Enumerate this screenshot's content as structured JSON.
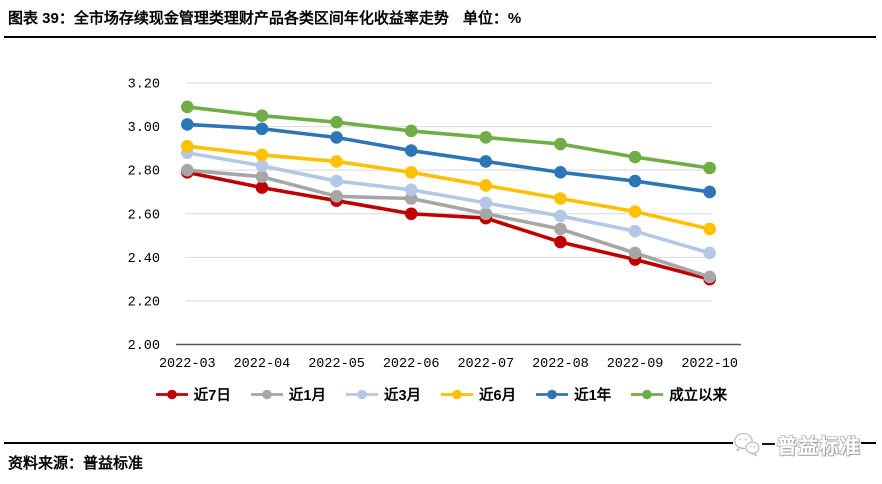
{
  "header": {
    "title": "图表 39：全市场存续现金管理类理财产品各类区间年化收益率走势",
    "unit": "单位：%"
  },
  "source": {
    "label": "资料来源：普益标准"
  },
  "logo": {
    "text": "普益标准",
    "icon": "wechat-bubbles-icon"
  },
  "chart_data": {
    "type": "line",
    "title": "全市场存续现金管理类理财产品各类区间年化收益率走势",
    "unit": "%",
    "xlabel": "",
    "ylabel": "",
    "categories": [
      "2022-03",
      "2022-04",
      "2022-05",
      "2022-06",
      "2022-07",
      "2022-08",
      "2022-09",
      "2022-10"
    ],
    "series": [
      {
        "id": "7d",
        "name": "近7日",
        "color": "#C00000",
        "values": [
          2.79,
          2.72,
          2.66,
          2.6,
          2.58,
          2.47,
          2.39,
          2.3
        ]
      },
      {
        "id": "1m",
        "name": "近1月",
        "color": "#A6A6A6",
        "values": [
          2.8,
          2.77,
          2.68,
          2.67,
          2.6,
          2.53,
          2.42,
          2.31
        ]
      },
      {
        "id": "3m",
        "name": "近3月",
        "color": "#B4C7E7",
        "values": [
          2.88,
          2.82,
          2.75,
          2.71,
          2.65,
          2.59,
          2.52,
          2.42
        ]
      },
      {
        "id": "6m",
        "name": "近6月",
        "color": "#FFC000",
        "values": [
          2.91,
          2.87,
          2.84,
          2.79,
          2.73,
          2.67,
          2.61,
          2.53
        ]
      },
      {
        "id": "1y",
        "name": "近1年",
        "color": "#2E75B6",
        "values": [
          3.01,
          2.99,
          2.95,
          2.89,
          2.84,
          2.79,
          2.75,
          2.7
        ]
      },
      {
        "id": "inception",
        "name": "成立以来",
        "color": "#70AD47",
        "values": [
          3.09,
          3.05,
          3.02,
          2.98,
          2.95,
          2.92,
          2.86,
          2.81
        ]
      }
    ],
    "ylim": [
      2.0,
      3.2
    ],
    "yticks": [
      2.0,
      2.2,
      2.4,
      2.6,
      2.8,
      3.0,
      3.2
    ],
    "ytick_labels": [
      "2.00",
      "2.20",
      "2.40",
      "2.60",
      "2.80",
      "3.00",
      "3.20"
    ],
    "grid": true,
    "grid_color": "#D9D9D9",
    "axis_color": "#595959",
    "legend_position": "bottom"
  }
}
